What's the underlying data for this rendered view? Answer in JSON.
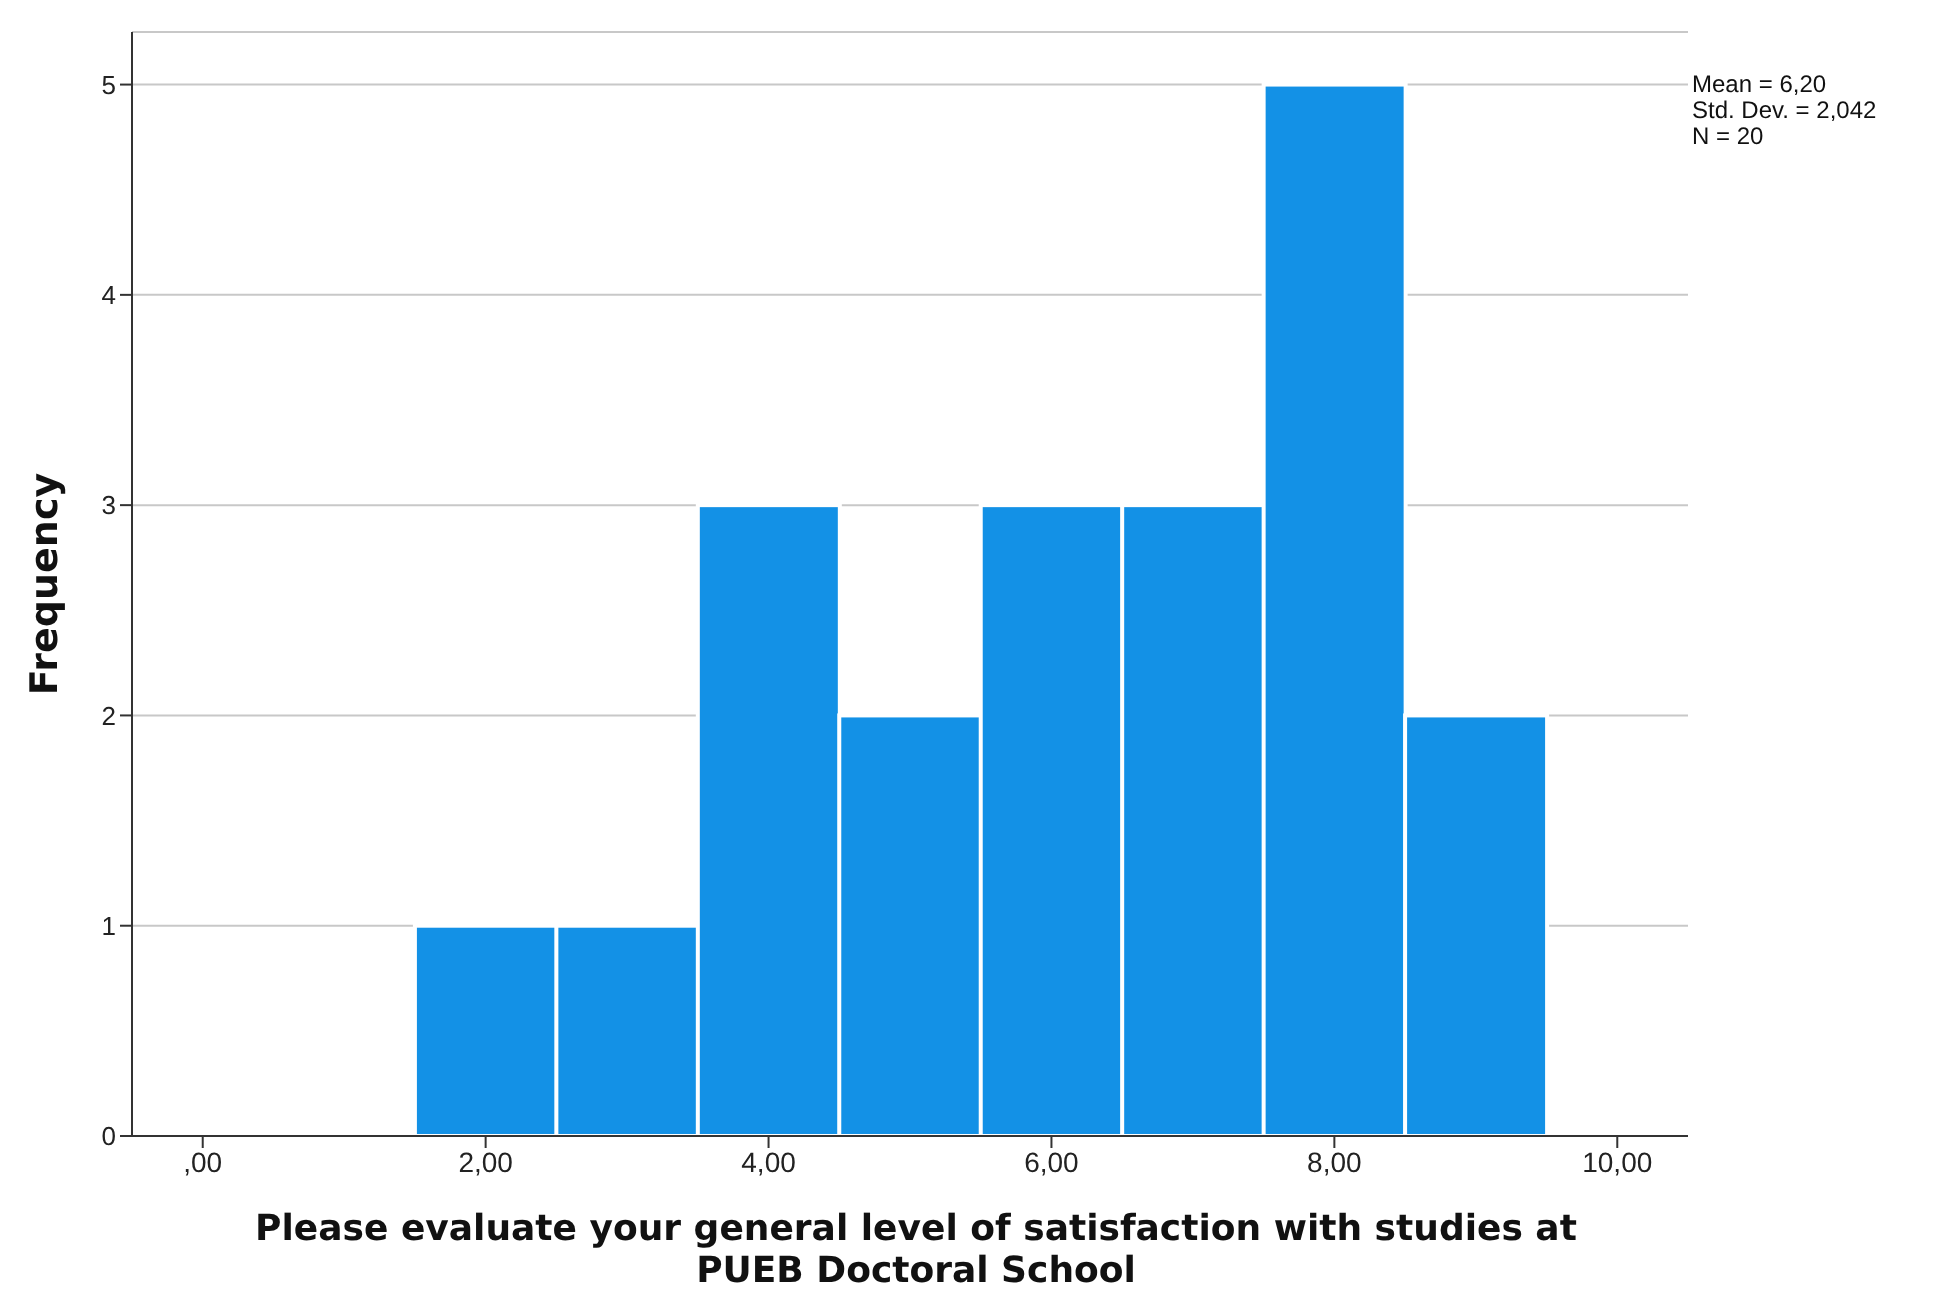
{
  "chart_data": {
    "type": "histogram",
    "xlabel": "Please evaluate your general level of satisfaction with studies at PUEB Doctoral School",
    "ylabel": "Frequency",
    "bins": [
      1.5,
      2.5,
      3.5,
      4.5,
      5.5,
      6.5,
      7.5,
      8.5,
      9.5
    ],
    "values": [
      1,
      1,
      3,
      2,
      3,
      3,
      5,
      2
    ],
    "color": "#1391e6",
    "xlim": [
      -0.5,
      10.5
    ],
    "xticks": [
      {
        "value": 0,
        "label": ",00"
      },
      {
        "value": 2,
        "label": "2,00"
      },
      {
        "value": 4,
        "label": "4,00"
      },
      {
        "value": 6,
        "label": "6,00"
      },
      {
        "value": 8,
        "label": "8,00"
      },
      {
        "value": 10,
        "label": "10,00"
      }
    ],
    "ylim": [
      0,
      5.25
    ],
    "yticks": [
      0,
      1,
      2,
      3,
      4,
      5
    ],
    "grid": "y",
    "annotations": [
      "Mean = 6,20",
      "Std. Dev. = 2,042",
      "N = 20"
    ]
  }
}
